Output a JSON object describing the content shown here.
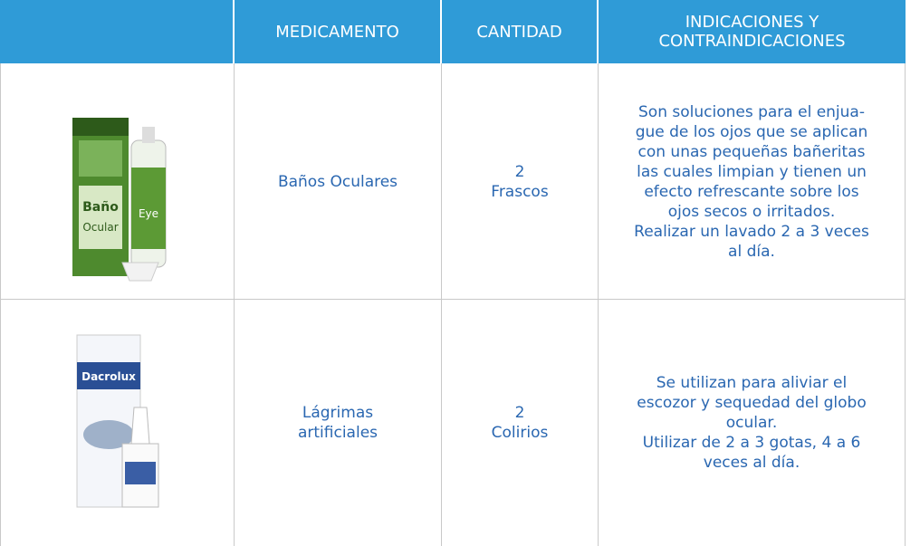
{
  "table": {
    "header": {
      "medicamento": "MEDICAMENTO",
      "cantidad": "CANTIDAD",
      "indicaciones": [
        "INDICACIONES Y",
        "CONTRAINDICACIONES"
      ]
    },
    "rows": [
      {
        "medicamento": [
          "Baños Oculares"
        ],
        "cantidad": [
          "2",
          "Frascos"
        ],
        "indicaciones": [
          "Son soluciones para el enjua-",
          "gue de los ojos que se aplican",
          "con unas pequeñas bañeritas",
          "las cuales limpian y tienen un",
          "efecto refrescante sobre los",
          "ojos secos o irritados.",
          "Realizar un lavado 2 a 3 veces",
          "al día."
        ]
      },
      {
        "medicamento": [
          "Lágrimas",
          "artificiales"
        ],
        "cantidad": [
          "2",
          "Colirios"
        ],
        "indicaciones": [
          "Se utilizan para aliviar el",
          "escozor y sequedad del globo",
          "ocular.",
          "Utilizar de 2 a 3 gotas, 4 a 6",
          "veces al día."
        ]
      }
    ]
  }
}
